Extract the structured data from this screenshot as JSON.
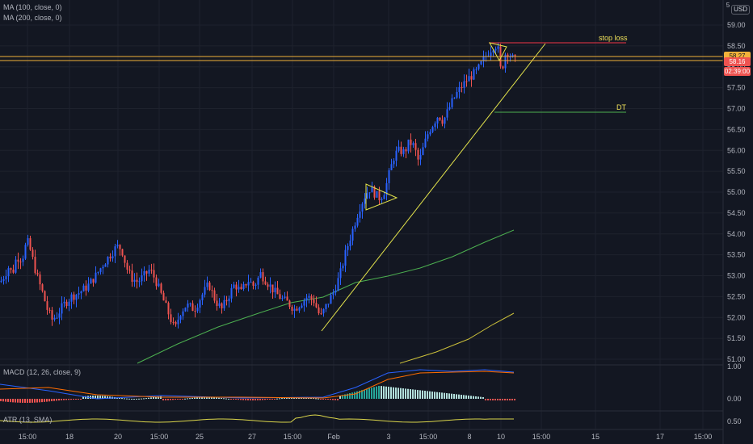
{
  "indicators": {
    "ma100": "MA (100, close, 0)",
    "ma200": "MA (200, close, 0)",
    "macd": "MACD (12, 26, close, 9)",
    "atr": "ATR (13, SMA)"
  },
  "currency": "USD",
  "price_labels": {
    "top_clipped": "5",
    "hline_price": "58.27",
    "last_price": "58.16",
    "countdown": "02:39:00"
  },
  "annotations": {
    "stop_loss": "stop loss",
    "dt": "DT"
  },
  "colors": {
    "background": "#131722",
    "up": "#2962ff",
    "down": "#ef5350",
    "ma100": "#4caf50",
    "ma200": "#c9be3a",
    "trend": "#e4e44c",
    "hline": "#f2b13a",
    "stop_loss": "#f23645",
    "dt": "#4caf50"
  },
  "chart_data": {
    "type": "candlestick",
    "price_axis": {
      "ticks": [
        "59.00",
        "58.50",
        "58.00",
        "57.50",
        "57.00",
        "56.50",
        "56.00",
        "55.50",
        "55.00",
        "54.50",
        "54.00",
        "53.50",
        "53.00",
        "52.50",
        "52.00",
        "51.50",
        "51.00"
      ],
      "range": [
        50.85,
        59.25
      ]
    },
    "time_axis": [
      "15:00",
      "18",
      "20",
      "15:00",
      "25",
      "27",
      "15:00",
      "Feb",
      "3",
      "15:00",
      "8",
      "10",
      "15:00",
      "15",
      "17",
      "15:00"
    ],
    "macd_axis": [
      "1.00",
      "0.00"
    ],
    "atr_axis": [
      "0.50"
    ],
    "horizontal_line": 58.27,
    "last_price": 58.16,
    "stop_loss_level": 58.6,
    "dt_level": 56.95,
    "series_shape": [
      [
        0,
        52.85
      ],
      [
        5,
        53.0
      ],
      [
        10,
        53.2
      ],
      [
        15,
        53.05
      ],
      [
        20,
        53.45
      ],
      [
        27,
        53.4
      ],
      [
        33,
        53.85
      ],
      [
        38,
        53.55
      ],
      [
        45,
        53.0
      ],
      [
        52,
        52.6
      ],
      [
        58,
        52.2
      ],
      [
        64,
        51.95
      ],
      [
        70,
        52.05
      ],
      [
        78,
        52.3
      ],
      [
        88,
        52.5
      ],
      [
        98,
        52.6
      ],
      [
        108,
        52.75
      ],
      [
        118,
        53.0
      ],
      [
        128,
        53.3
      ],
      [
        136,
        53.5
      ],
      [
        144,
        53.7
      ],
      [
        150,
        53.65
      ],
      [
        156,
        53.2
      ],
      [
        162,
        52.95
      ],
      [
        170,
        52.85
      ],
      [
        178,
        53.0
      ],
      [
        185,
        53.15
      ],
      [
        192,
        52.9
      ],
      [
        198,
        52.6
      ],
      [
        204,
        52.3
      ],
      [
        210,
        52.0
      ],
      [
        216,
        51.7
      ],
      [
        222,
        52.1
      ],
      [
        230,
        52.3
      ],
      [
        240,
        52.2
      ],
      [
        250,
        52.55
      ],
      [
        258,
        52.8
      ],
      [
        266,
        52.4
      ],
      [
        274,
        52.2
      ],
      [
        282,
        52.5
      ],
      [
        290,
        52.8
      ],
      [
        298,
        52.6
      ],
      [
        306,
        52.9
      ],
      [
        314,
        52.75
      ],
      [
        322,
        53.05
      ],
      [
        330,
        52.85
      ],
      [
        340,
        52.6
      ],
      [
        348,
        52.45
      ],
      [
        356,
        52.35
      ],
      [
        364,
        52.2
      ],
      [
        372,
        52.35
      ],
      [
        380,
        52.5
      ],
      [
        388,
        52.4
      ],
      [
        396,
        52.0
      ],
      [
        404,
        52.3
      ],
      [
        412,
        52.6
      ],
      [
        420,
        53.0
      ],
      [
        428,
        53.6
      ],
      [
        436,
        54.1
      ],
      [
        444,
        54.6
      ],
      [
        452,
        54.95
      ],
      [
        458,
        55.1
      ],
      [
        464,
        54.95
      ],
      [
        470,
        54.85
      ],
      [
        476,
        55.05
      ],
      [
        482,
        55.5
      ],
      [
        488,
        55.9
      ],
      [
        494,
        56.0
      ],
      [
        500,
        55.95
      ],
      [
        506,
        56.2
      ],
      [
        512,
        56.1
      ],
      [
        518,
        55.7
      ],
      [
        524,
        56.1
      ],
      [
        530,
        56.45
      ],
      [
        536,
        56.65
      ],
      [
        542,
        56.85
      ],
      [
        548,
        56.7
      ],
      [
        554,
        56.95
      ],
      [
        560,
        57.2
      ],
      [
        566,
        57.4
      ],
      [
        572,
        57.55
      ],
      [
        578,
        57.7
      ],
      [
        584,
        57.8
      ],
      [
        590,
        57.9
      ],
      [
        596,
        58.1
      ],
      [
        602,
        58.3
      ],
      [
        608,
        58.45
      ],
      [
        612,
        58.55
      ],
      [
        616,
        58.4
      ],
      [
        620,
        57.8
      ],
      [
        624,
        58.3
      ],
      [
        628,
        58.35
      ],
      [
        632,
        58.25
      ],
      [
        636,
        58.16
      ]
    ]
  }
}
